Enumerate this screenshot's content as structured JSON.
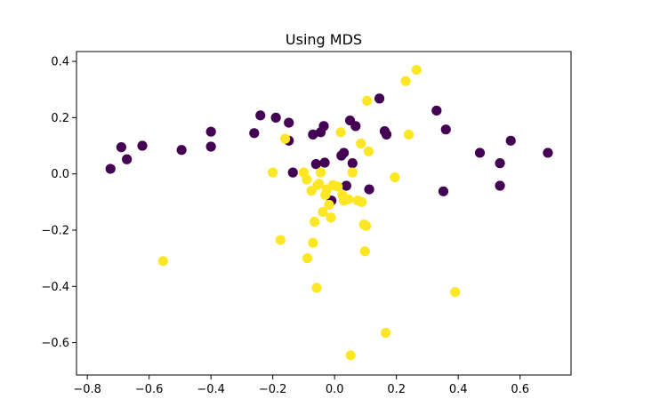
{
  "chart_data": {
    "type": "scatter",
    "title": "Using MDS",
    "xlabel": "",
    "ylabel": "",
    "xlim": [
      -0.835,
      0.765
    ],
    "ylim": [
      -0.715,
      0.435
    ],
    "xticks": [
      -0.8,
      -0.6,
      -0.4,
      -0.2,
      0.0,
      0.2,
      0.4,
      0.6
    ],
    "yticks": [
      0.4,
      0.2,
      0.0,
      -0.2,
      -0.4,
      -0.6
    ],
    "xtick_labels": [
      "−0.8",
      "−0.6",
      "−0.4",
      "−0.2",
      "0.0",
      "0.2",
      "0.4",
      "0.6"
    ],
    "ytick_labels": [
      "0.4",
      "0.2",
      "0.0",
      "−0.2",
      "−0.4",
      "−0.6"
    ],
    "grid": false,
    "series": [
      {
        "color": "#440154",
        "points": [
          [
            -0.725,
            0.018
          ],
          [
            -0.69,
            0.095
          ],
          [
            -0.672,
            0.052
          ],
          [
            -0.622,
            0.1
          ],
          [
            -0.495,
            0.085
          ],
          [
            -0.4,
            0.15
          ],
          [
            -0.4,
            0.097
          ],
          [
            -0.26,
            0.145
          ],
          [
            -0.24,
            0.208
          ],
          [
            -0.19,
            0.2
          ],
          [
            -0.148,
            0.182
          ],
          [
            -0.148,
            0.118
          ],
          [
            -0.135,
            0.005
          ],
          [
            -0.07,
            0.14
          ],
          [
            -0.06,
            0.035
          ],
          [
            -0.045,
            0.148
          ],
          [
            -0.035,
            0.17
          ],
          [
            -0.032,
            0.04
          ],
          [
            -0.01,
            -0.095
          ],
          [
            0.022,
            0.065
          ],
          [
            0.03,
            0.075
          ],
          [
            0.038,
            -0.042
          ],
          [
            0.05,
            0.19
          ],
          [
            0.058,
            0.038
          ],
          [
            0.068,
            0.17
          ],
          [
            0.112,
            -0.055
          ],
          [
            0.145,
            0.268
          ],
          [
            0.162,
            0.152
          ],
          [
            0.168,
            0.14
          ],
          [
            0.33,
            0.225
          ],
          [
            0.36,
            0.158
          ],
          [
            0.352,
            -0.062
          ],
          [
            0.47,
            0.075
          ],
          [
            0.535,
            0.038
          ],
          [
            0.535,
            -0.042
          ],
          [
            0.57,
            0.118
          ],
          [
            0.69,
            0.075
          ]
        ]
      },
      {
        "color": "#fde725",
        "points": [
          [
            -0.555,
            -0.31
          ],
          [
            -0.2,
            0.005
          ],
          [
            -0.175,
            -0.235
          ],
          [
            -0.16,
            0.125
          ],
          [
            -0.1,
            0.005
          ],
          [
            -0.09,
            -0.02
          ],
          [
            -0.088,
            -0.3
          ],
          [
            -0.075,
            -0.06
          ],
          [
            -0.07,
            -0.245
          ],
          [
            -0.065,
            -0.17
          ],
          [
            -0.058,
            -0.405
          ],
          [
            -0.055,
            -0.04
          ],
          [
            -0.05,
            -0.035
          ],
          [
            -0.045,
            0.005
          ],
          [
            -0.038,
            -0.135
          ],
          [
            -0.03,
            -0.075
          ],
          [
            -0.025,
            -0.055
          ],
          [
            -0.018,
            -0.11
          ],
          [
            -0.012,
            -0.155
          ],
          [
            -0.005,
            -0.04
          ],
          [
            0.01,
            -0.045
          ],
          [
            0.02,
            0.148
          ],
          [
            0.025,
            -0.075
          ],
          [
            0.03,
            -0.095
          ],
          [
            0.045,
            -0.09
          ],
          [
            0.052,
            -0.645
          ],
          [
            0.058,
            0.005
          ],
          [
            0.075,
            -0.095
          ],
          [
            0.085,
            0.108
          ],
          [
            0.088,
            -0.1
          ],
          [
            0.095,
            -0.18
          ],
          [
            0.098,
            -0.275
          ],
          [
            0.102,
            -0.185
          ],
          [
            0.105,
            0.26
          ],
          [
            0.11,
            0.08
          ],
          [
            0.165,
            -0.565
          ],
          [
            0.195,
            -0.012
          ],
          [
            0.23,
            0.33
          ],
          [
            0.24,
            0.14
          ],
          [
            0.265,
            0.37
          ],
          [
            0.39,
            -0.42
          ]
        ]
      }
    ]
  }
}
